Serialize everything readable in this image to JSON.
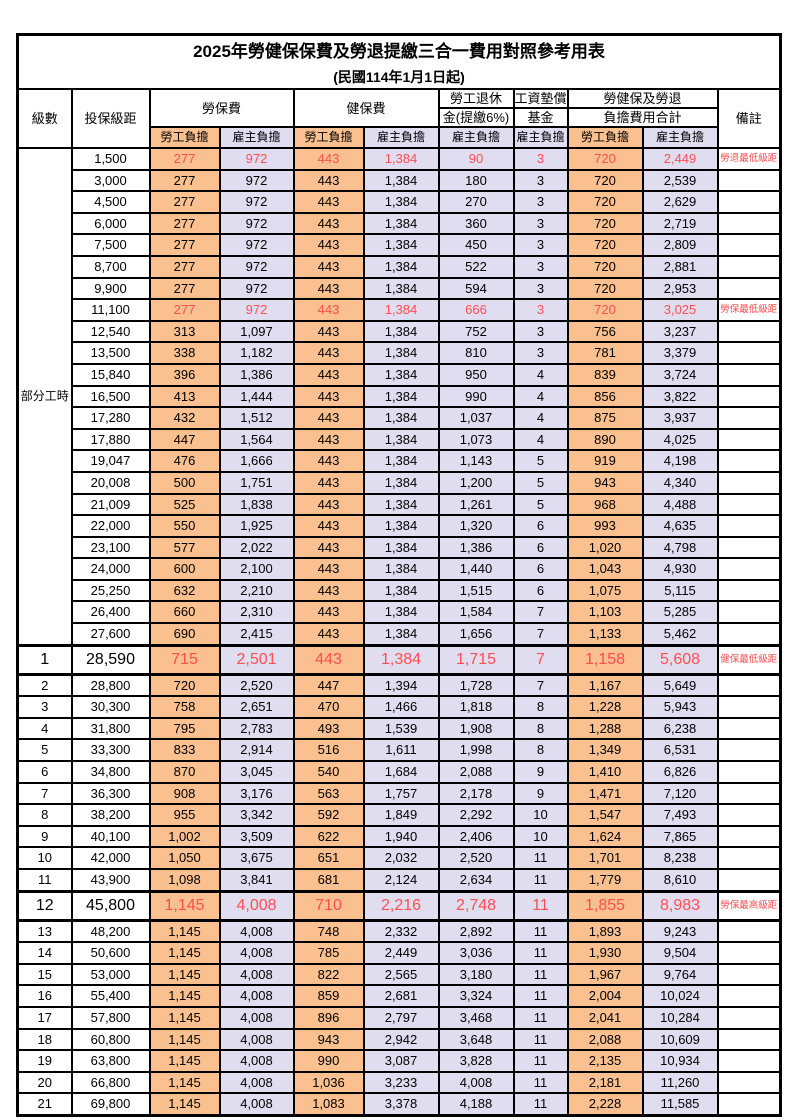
{
  "title": "2025年勞健保保費及勞退提繳三合一費用對照參考用表",
  "subtitle": "(民國114年1月1日起)",
  "colors": {
    "employee_bg": "#FAC090",
    "employer_bg": "#E0DDF0",
    "highlight_text": "#FF4D50",
    "border": "#000000"
  },
  "columns": {
    "level": "級數",
    "bracket": "投保級距",
    "labor": "勞保費",
    "health": "健保費",
    "pension_line1": "勞工退休",
    "pension_line2": "金(提繳6%)",
    "wage_fund_line1": "工資墊償",
    "wage_fund_line2": "基金",
    "total_line1": "勞健保及勞退",
    "total_line2": "負擔費用合計",
    "remark": "備註",
    "employee": "勞工負擔",
    "employer": "雇主負擔"
  },
  "group_label": "部分工時",
  "group_row_span": 23,
  "value_column_names": [
    "labor-employee",
    "labor-employer",
    "health-employee",
    "health-employer",
    "pension-employer",
    "wage-fund-employer",
    "total-employee",
    "total-employer"
  ],
  "rows": [
    {
      "level": "",
      "bracket": "1,500",
      "v": [
        "277",
        "972",
        "443",
        "1,384",
        "90",
        "3",
        "720",
        "2,449"
      ],
      "remark": "勞退最低級距",
      "hl": true,
      "big": false
    },
    {
      "level": "",
      "bracket": "3,000",
      "v": [
        "277",
        "972",
        "443",
        "1,384",
        "180",
        "3",
        "720",
        "2,539"
      ],
      "remark": "",
      "hl": false,
      "big": false
    },
    {
      "level": "",
      "bracket": "4,500",
      "v": [
        "277",
        "972",
        "443",
        "1,384",
        "270",
        "3",
        "720",
        "2,629"
      ],
      "remark": "",
      "hl": false,
      "big": false
    },
    {
      "level": "",
      "bracket": "6,000",
      "v": [
        "277",
        "972",
        "443",
        "1,384",
        "360",
        "3",
        "720",
        "2,719"
      ],
      "remark": "",
      "hl": false,
      "big": false
    },
    {
      "level": "",
      "bracket": "7,500",
      "v": [
        "277",
        "972",
        "443",
        "1,384",
        "450",
        "3",
        "720",
        "2,809"
      ],
      "remark": "",
      "hl": false,
      "big": false
    },
    {
      "level": "",
      "bracket": "8,700",
      "v": [
        "277",
        "972",
        "443",
        "1,384",
        "522",
        "3",
        "720",
        "2,881"
      ],
      "remark": "",
      "hl": false,
      "big": false
    },
    {
      "level": "",
      "bracket": "9,900",
      "v": [
        "277",
        "972",
        "443",
        "1,384",
        "594",
        "3",
        "720",
        "2,953"
      ],
      "remark": "",
      "hl": false,
      "big": false
    },
    {
      "level": "",
      "bracket": "11,100",
      "v": [
        "277",
        "972",
        "443",
        "1,384",
        "666",
        "3",
        "720",
        "3,025"
      ],
      "remark": "勞保最低級距",
      "hl": true,
      "big": false
    },
    {
      "level": "",
      "bracket": "12,540",
      "v": [
        "313",
        "1,097",
        "443",
        "1,384",
        "752",
        "3",
        "756",
        "3,237"
      ],
      "remark": "",
      "hl": false,
      "big": false
    },
    {
      "level": "",
      "bracket": "13,500",
      "v": [
        "338",
        "1,182",
        "443",
        "1,384",
        "810",
        "3",
        "781",
        "3,379"
      ],
      "remark": "",
      "hl": false,
      "big": false
    },
    {
      "level": "",
      "bracket": "15,840",
      "v": [
        "396",
        "1,386",
        "443",
        "1,384",
        "950",
        "4",
        "839",
        "3,724"
      ],
      "remark": "",
      "hl": false,
      "big": false
    },
    {
      "level": "",
      "bracket": "16,500",
      "v": [
        "413",
        "1,444",
        "443",
        "1,384",
        "990",
        "4",
        "856",
        "3,822"
      ],
      "remark": "",
      "hl": false,
      "big": false
    },
    {
      "level": "",
      "bracket": "17,280",
      "v": [
        "432",
        "1,512",
        "443",
        "1,384",
        "1,037",
        "4",
        "875",
        "3,937"
      ],
      "remark": "",
      "hl": false,
      "big": false
    },
    {
      "level": "",
      "bracket": "17,880",
      "v": [
        "447",
        "1,564",
        "443",
        "1,384",
        "1,073",
        "4",
        "890",
        "4,025"
      ],
      "remark": "",
      "hl": false,
      "big": false
    },
    {
      "level": "",
      "bracket": "19,047",
      "v": [
        "476",
        "1,666",
        "443",
        "1,384",
        "1,143",
        "5",
        "919",
        "4,198"
      ],
      "remark": "",
      "hl": false,
      "big": false
    },
    {
      "level": "",
      "bracket": "20,008",
      "v": [
        "500",
        "1,751",
        "443",
        "1,384",
        "1,200",
        "5",
        "943",
        "4,340"
      ],
      "remark": "",
      "hl": false,
      "big": false
    },
    {
      "level": "",
      "bracket": "21,009",
      "v": [
        "525",
        "1,838",
        "443",
        "1,384",
        "1,261",
        "5",
        "968",
        "4,488"
      ],
      "remark": "",
      "hl": false,
      "big": false
    },
    {
      "level": "",
      "bracket": "22,000",
      "v": [
        "550",
        "1,925",
        "443",
        "1,384",
        "1,320",
        "6",
        "993",
        "4,635"
      ],
      "remark": "",
      "hl": false,
      "big": false
    },
    {
      "level": "",
      "bracket": "23,100",
      "v": [
        "577",
        "2,022",
        "443",
        "1,384",
        "1,386",
        "6",
        "1,020",
        "4,798"
      ],
      "remark": "",
      "hl": false,
      "big": false
    },
    {
      "level": "",
      "bracket": "24,000",
      "v": [
        "600",
        "2,100",
        "443",
        "1,384",
        "1,440",
        "6",
        "1,043",
        "4,930"
      ],
      "remark": "",
      "hl": false,
      "big": false
    },
    {
      "level": "",
      "bracket": "25,250",
      "v": [
        "632",
        "2,210",
        "443",
        "1,384",
        "1,515",
        "6",
        "1,075",
        "5,115"
      ],
      "remark": "",
      "hl": false,
      "big": false
    },
    {
      "level": "",
      "bracket": "26,400",
      "v": [
        "660",
        "2,310",
        "443",
        "1,384",
        "1,584",
        "7",
        "1,103",
        "5,285"
      ],
      "remark": "",
      "hl": false,
      "big": false
    },
    {
      "level": "",
      "bracket": "27,600",
      "v": [
        "690",
        "2,415",
        "443",
        "1,384",
        "1,656",
        "7",
        "1,133",
        "5,462"
      ],
      "remark": "",
      "hl": false,
      "big": false
    },
    {
      "level": "1",
      "bracket": "28,590",
      "v": [
        "715",
        "2,501",
        "443",
        "1,384",
        "1,715",
        "7",
        "1,158",
        "5,608"
      ],
      "remark": "健保最低級距",
      "hl": true,
      "big": true
    },
    {
      "level": "2",
      "bracket": "28,800",
      "v": [
        "720",
        "2,520",
        "447",
        "1,394",
        "1,728",
        "7",
        "1,167",
        "5,649"
      ],
      "remark": "",
      "hl": false,
      "big": false
    },
    {
      "level": "3",
      "bracket": "30,300",
      "v": [
        "758",
        "2,651",
        "470",
        "1,466",
        "1,818",
        "8",
        "1,228",
        "5,943"
      ],
      "remark": "",
      "hl": false,
      "big": false
    },
    {
      "level": "4",
      "bracket": "31,800",
      "v": [
        "795",
        "2,783",
        "493",
        "1,539",
        "1,908",
        "8",
        "1,288",
        "6,238"
      ],
      "remark": "",
      "hl": false,
      "big": false
    },
    {
      "level": "5",
      "bracket": "33,300",
      "v": [
        "833",
        "2,914",
        "516",
        "1,611",
        "1,998",
        "8",
        "1,349",
        "6,531"
      ],
      "remark": "",
      "hl": false,
      "big": false
    },
    {
      "level": "6",
      "bracket": "34,800",
      "v": [
        "870",
        "3,045",
        "540",
        "1,684",
        "2,088",
        "9",
        "1,410",
        "6,826"
      ],
      "remark": "",
      "hl": false,
      "big": false
    },
    {
      "level": "7",
      "bracket": "36,300",
      "v": [
        "908",
        "3,176",
        "563",
        "1,757",
        "2,178",
        "9",
        "1,471",
        "7,120"
      ],
      "remark": "",
      "hl": false,
      "big": false
    },
    {
      "level": "8",
      "bracket": "38,200",
      "v": [
        "955",
        "3,342",
        "592",
        "1,849",
        "2,292",
        "10",
        "1,547",
        "7,493"
      ],
      "remark": "",
      "hl": false,
      "big": false
    },
    {
      "level": "9",
      "bracket": "40,100",
      "v": [
        "1,002",
        "3,509",
        "622",
        "1,940",
        "2,406",
        "10",
        "1,624",
        "7,865"
      ],
      "remark": "",
      "hl": false,
      "big": false
    },
    {
      "level": "10",
      "bracket": "42,000",
      "v": [
        "1,050",
        "3,675",
        "651",
        "2,032",
        "2,520",
        "11",
        "1,701",
        "8,238"
      ],
      "remark": "",
      "hl": false,
      "big": false
    },
    {
      "level": "11",
      "bracket": "43,900",
      "v": [
        "1,098",
        "3,841",
        "681",
        "2,124",
        "2,634",
        "11",
        "1,779",
        "8,610"
      ],
      "remark": "",
      "hl": false,
      "big": false
    },
    {
      "level": "12",
      "bracket": "45,800",
      "v": [
        "1,145",
        "4,008",
        "710",
        "2,216",
        "2,748",
        "11",
        "1,855",
        "8,983"
      ],
      "remark": "勞保最高級距",
      "hl": true,
      "big": true
    },
    {
      "level": "13",
      "bracket": "48,200",
      "v": [
        "1,145",
        "4,008",
        "748",
        "2,332",
        "2,892",
        "11",
        "1,893",
        "9,243"
      ],
      "remark": "",
      "hl": false,
      "big": false
    },
    {
      "level": "14",
      "bracket": "50,600",
      "v": [
        "1,145",
        "4,008",
        "785",
        "2,449",
        "3,036",
        "11",
        "1,930",
        "9,504"
      ],
      "remark": "",
      "hl": false,
      "big": false
    },
    {
      "level": "15",
      "bracket": "53,000",
      "v": [
        "1,145",
        "4,008",
        "822",
        "2,565",
        "3,180",
        "11",
        "1,967",
        "9,764"
      ],
      "remark": "",
      "hl": false,
      "big": false
    },
    {
      "level": "16",
      "bracket": "55,400",
      "v": [
        "1,145",
        "4,008",
        "859",
        "2,681",
        "3,324",
        "11",
        "2,004",
        "10,024"
      ],
      "remark": "",
      "hl": false,
      "big": false
    },
    {
      "level": "17",
      "bracket": "57,800",
      "v": [
        "1,145",
        "4,008",
        "896",
        "2,797",
        "3,468",
        "11",
        "2,041",
        "10,284"
      ],
      "remark": "",
      "hl": false,
      "big": false
    },
    {
      "level": "18",
      "bracket": "60,800",
      "v": [
        "1,145",
        "4,008",
        "943",
        "2,942",
        "3,648",
        "11",
        "2,088",
        "10,609"
      ],
      "remark": "",
      "hl": false,
      "big": false
    },
    {
      "level": "19",
      "bracket": "63,800",
      "v": [
        "1,145",
        "4,008",
        "990",
        "3,087",
        "3,828",
        "11",
        "2,135",
        "10,934"
      ],
      "remark": "",
      "hl": false,
      "big": false
    },
    {
      "level": "20",
      "bracket": "66,800",
      "v": [
        "1,145",
        "4,008",
        "1,036",
        "3,233",
        "4,008",
        "11",
        "2,181",
        "11,260"
      ],
      "remark": "",
      "hl": false,
      "big": false
    },
    {
      "level": "21",
      "bracket": "69,800",
      "v": [
        "1,145",
        "4,008",
        "1,083",
        "3,378",
        "4,188",
        "11",
        "2,228",
        "11,585"
      ],
      "remark": "",
      "hl": false,
      "big": false
    }
  ]
}
